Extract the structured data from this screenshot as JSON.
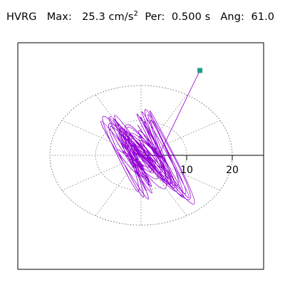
{
  "header": {
    "station": "HVRG",
    "max_label": "Max:",
    "max_value": "25.3 cm/s",
    "max_exponent": "2",
    "per_label": "Per:",
    "per_value": "0.500 s",
    "ang_label": "Ang:",
    "ang_value": "61.0"
  },
  "chart_data": {
    "type": "line",
    "title": "",
    "ring_labels": [
      "10",
      "20"
    ],
    "ring_radii": [
      10,
      20
    ],
    "axis_range": [
      -27,
      27
    ],
    "max_amplitude": 25.3,
    "polarization_angle_deg": 61.0,
    "period_s": 0.5,
    "grid": "dotted polar rings with radial spokes every 30 degrees",
    "series": [
      {
        "color": "#9400d3",
        "x": [
          -1.4,
          1.8,
          -2.6,
          3.1,
          -0.8,
          4.7,
          -3.5,
          2.2,
          -5.3,
          6.1,
          -1.9,
          3.9,
          -6.8,
          5.2,
          -2.7,
          7.4,
          -4.6,
          1.3,
          -8.1,
          6.7,
          -3.3,
          9.0,
          -5.9,
          2.8,
          -7.2,
          10.6,
          -4.1,
          8.3,
          -9.6,
          4.4,
          -6.3,
          11.2,
          -2.1,
          7.8,
          -10.3,
          5.6,
          -8.7,
          12.5,
          -3.8,
          9.4,
          -12.1,
          6.2,
          -7.5,
          13.6,
          -1.6,
          8.9,
          -11.4,
          4.9,
          -9.1,
          14.8,
          -5.4,
          10.7,
          -13.2,
          2.5,
          -6.9,
          15.9,
          -4.3,
          11.6,
          -10.8,
          7.1,
          -12.7,
          16.8,
          -3.1,
          9.8,
          -14.3,
          5.8,
          -8.4,
          17.3,
          -2.4,
          12.9,
          -11.9,
          3.6,
          -6.1,
          14.2,
          -1.2,
          10.1,
          -8.8,
          4.6,
          -5.0,
          9.3,
          -0.6,
          6.4,
          -3.9,
          2.1
        ],
        "y": [
          0.9,
          -2.2,
          3.0,
          -1.1,
          4.6,
          -3.4,
          2.5,
          -5.8,
          6.3,
          -2.9,
          7.1,
          -6.4,
          4.2,
          -8.8,
          9.3,
          -4.5,
          10.7,
          -9.6,
          5.8,
          -11.9,
          12.6,
          -7.3,
          13.9,
          -12.1,
          8.6,
          -14.8,
          15.7,
          -10.2,
          16.4,
          -13.7,
          11.9,
          -17.3,
          17.9,
          -12.8,
          18.6,
          -15.4,
          13.1,
          -19.2,
          20.3,
          -14.6,
          19.7,
          -17.8,
          15.8,
          -21.5,
          21.9,
          -16.2,
          20.8,
          -19.9,
          17.4,
          -22.7,
          22.6,
          -18.3,
          21.4,
          -20.7,
          19.1,
          -23.4,
          23.8,
          -19.5,
          22.1,
          -21.2,
          18.6,
          -24.1,
          24.9,
          -20.3,
          20.2,
          -22.9,
          16.9,
          -25.4,
          24.3,
          -18.8,
          18.9,
          -21.6,
          14.7,
          -20.2,
          19.5,
          -16.1,
          13.8,
          -15.7,
          11.2,
          -12.4,
          9.7,
          -9.1,
          6.3,
          -4.8
        ]
      }
    ],
    "end_marker": {
      "x": 12.9,
      "y": 24.3,
      "color": "#1e9e84"
    }
  }
}
